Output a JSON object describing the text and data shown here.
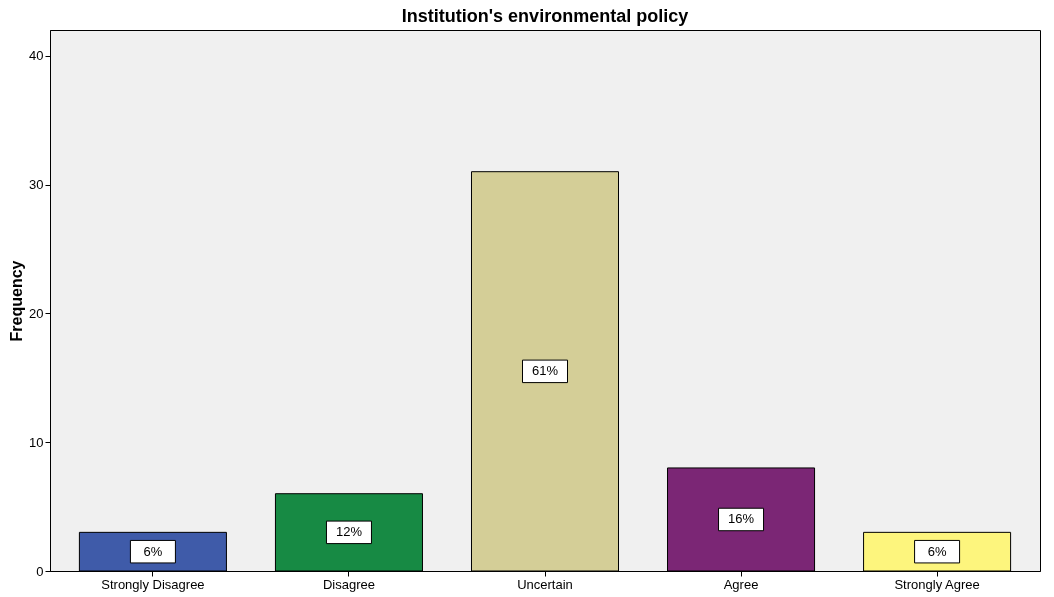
{
  "chart_data": {
    "type": "bar",
    "title": "Institution's environmental policy",
    "ylabel": "Frequency",
    "categories": [
      "Strongly Disagree",
      "Disagree",
      "Uncertain",
      "Agree",
      "Strongly Agree"
    ],
    "values": [
      3,
      6,
      31,
      8,
      3
    ],
    "colors": [
      "#3f5ba9",
      "#178a44",
      "#d4ce97",
      "#7b2675",
      "#fdf57d"
    ],
    "annotations": [
      "6%",
      "12%",
      "61%",
      "16%",
      "6%"
    ],
    "ylim": [
      0,
      42
    ],
    "yticks": [
      0,
      10,
      20,
      30,
      40
    ],
    "grid": false
  }
}
